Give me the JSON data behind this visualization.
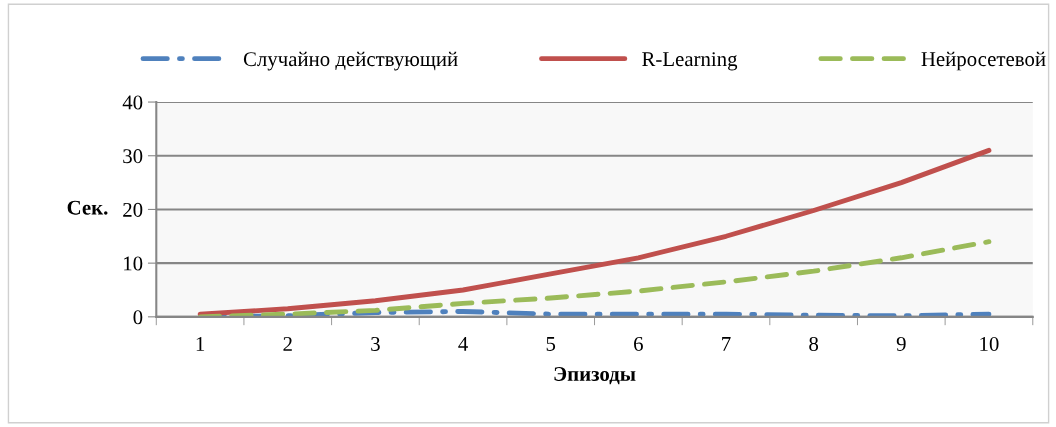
{
  "chart_data": {
    "type": "line",
    "xlabel": "Эпизоды",
    "ylabel": "Сек.",
    "categories": [
      "1",
      "2",
      "3",
      "4",
      "5",
      "6",
      "7",
      "8",
      "9",
      "10"
    ],
    "series": [
      {
        "name": "Случайно действующий",
        "color": "#4f81bd",
        "line_style": "dashdot",
        "values": [
          0,
          0.2,
          0.8,
          1,
          0.5,
          0.5,
          0.5,
          0.3,
          0.2,
          0.5
        ]
      },
      {
        "name": "R-Learning",
        "color": "#c0504d",
        "line_style": "solid",
        "values": [
          0.5,
          1.5,
          3,
          5,
          8,
          11,
          15,
          19.8,
          25,
          31
        ]
      },
      {
        "name": "Нейросетевой",
        "color": "#9bbb59",
        "line_style": "dashed",
        "values": [
          0,
          0.5,
          1.2,
          2.5,
          3.5,
          4.8,
          6.5,
          8.5,
          11,
          14
        ]
      }
    ],
    "ylim": [
      0,
      40
    ],
    "yticks": [
      0,
      10,
      20,
      30,
      40
    ],
    "grid": "y",
    "legend": "top",
    "marker": "none"
  }
}
